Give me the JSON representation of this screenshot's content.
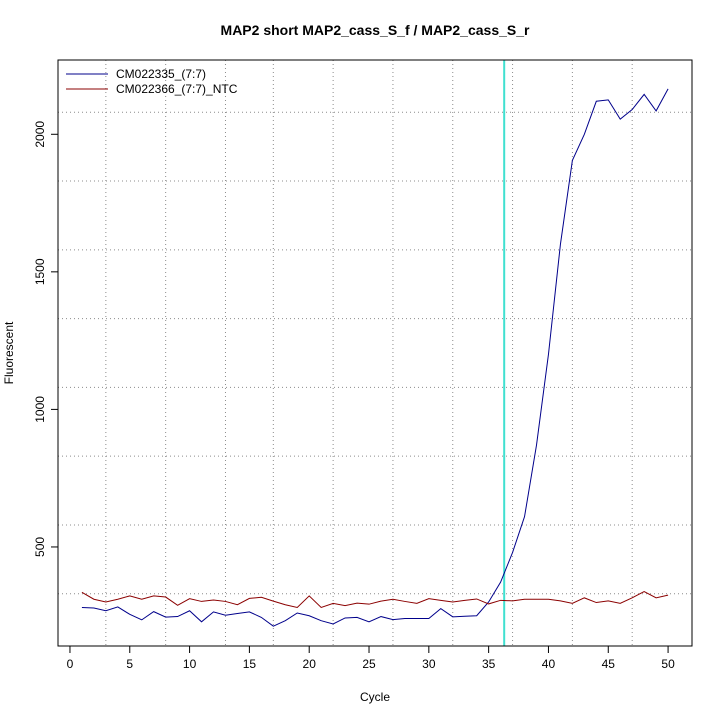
{
  "chart_data": {
    "type": "line",
    "title": "MAP2 short MAP2_cass_S_f / MAP2_cass_S_r",
    "xlabel": "Cycle",
    "ylabel": "Fluorescent",
    "xlim": [
      -1,
      52
    ],
    "ylim": [
      140,
      2270
    ],
    "x_ticks": [
      0,
      5,
      10,
      15,
      20,
      25,
      30,
      35,
      40,
      45,
      50
    ],
    "y_ticks": [
      500,
      1000,
      1500,
      2000
    ],
    "grid": true,
    "grid_x": [
      3,
      8,
      13,
      17,
      22,
      27,
      32,
      37,
      42,
      47
    ],
    "grid_y": [
      330,
      580,
      830,
      1080,
      1330,
      1580,
      1830,
      2080
    ],
    "legend_position": "top-left",
    "threshold_x": 36.3,
    "threshold_color": "#40e0d0",
    "x": [
      1,
      2,
      3,
      4,
      5,
      6,
      7,
      8,
      9,
      10,
      11,
      12,
      13,
      14,
      15,
      16,
      17,
      18,
      19,
      20,
      21,
      22,
      23,
      24,
      25,
      26,
      27,
      28,
      29,
      30,
      31,
      32,
      33,
      34,
      35,
      36,
      37,
      38,
      39,
      40,
      41,
      42,
      43,
      44,
      45,
      46,
      47,
      48,
      49,
      50
    ],
    "series": [
      {
        "name": "CM022335_(7:7)",
        "color": "#00008b",
        "values": [
          280,
          278,
          268,
          282,
          255,
          235,
          265,
          245,
          247,
          268,
          228,
          264,
          252,
          258,
          264,
          244,
          212,
          232,
          260,
          250,
          232,
          220,
          242,
          244,
          228,
          247,
          236,
          240,
          240,
          240,
          276,
          246,
          248,
          250,
          300,
          372,
          480,
          610,
          870,
          1200,
          1600,
          1905,
          2000,
          2120,
          2125,
          2055,
          2090,
          2145,
          2085,
          2165
        ]
      },
      {
        "name": "CM022366_(7:7)_NTC",
        "color": "#8b0000",
        "values": [
          335,
          310,
          300,
          310,
          322,
          310,
          322,
          318,
          288,
          312,
          302,
          307,
          302,
          290,
          313,
          317,
          303,
          290,
          280,
          322,
          280,
          295,
          287,
          296,
          292,
          303,
          310,
          302,
          295,
          312,
          306,
          300,
          306,
          311,
          293,
          306,
          304,
          310,
          310,
          310,
          304,
          295,
          315,
          298,
          304,
          295,
          315,
          338,
          315,
          325
        ]
      }
    ]
  }
}
